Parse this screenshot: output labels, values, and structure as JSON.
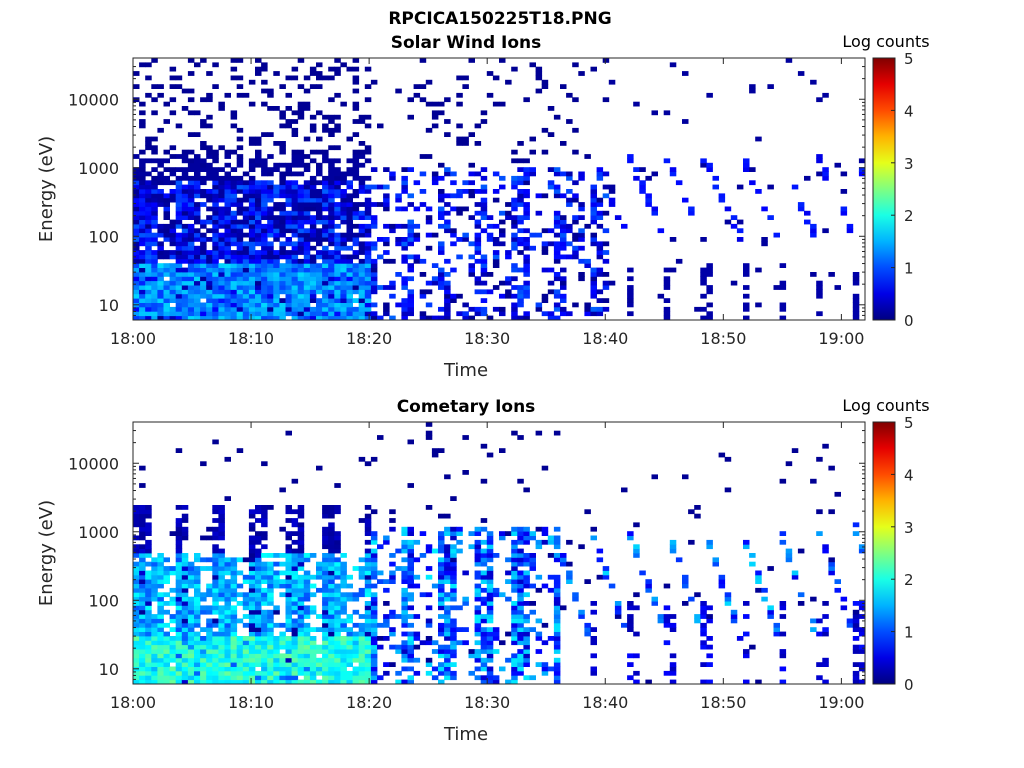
{
  "figure_title": "RPCICA150225T18.PNG",
  "chart_data": [
    {
      "type": "heatmap",
      "title": "Solar Wind Ions",
      "xlabel": "Time",
      "ylabel": "Energy (eV)",
      "x_ticks": [
        "18:00",
        "18:10",
        "18:20",
        "18:30",
        "18:40",
        "18:50",
        "19:00"
      ],
      "x_range": [
        "18:00",
        "19:02"
      ],
      "y_scale": "log",
      "y_ticks": [
        "10",
        "100",
        "1000",
        "10000"
      ],
      "y_range": [
        6,
        40000
      ],
      "colorbar": {
        "label": "Log counts",
        "range": [
          0,
          5
        ],
        "ticks": [
          "0",
          "1",
          "2",
          "3",
          "4",
          "5"
        ],
        "colormap": "jet"
      },
      "regions": [
        {
          "time": [
            "18:00",
            "18:20"
          ],
          "energy_eV": [
            6,
            40
          ],
          "log_counts": 1.2
        },
        {
          "time": [
            "18:00",
            "18:20"
          ],
          "energy_eV": [
            40,
            700
          ],
          "log_counts": 0.6
        },
        {
          "time": [
            "18:00",
            "18:20"
          ],
          "energy_eV": [
            700,
            30000
          ],
          "log_counts": 0.2
        },
        {
          "time": [
            "18:20",
            "18:40"
          ],
          "energy_eV": [
            6,
            1000
          ],
          "log_counts": 0.5
        },
        {
          "time": [
            "18:40",
            "19:02"
          ],
          "energy_eV": [
            6,
            2000
          ],
          "log_counts": 0.2
        }
      ]
    },
    {
      "type": "heatmap",
      "title": "Cometary Ions",
      "xlabel": "Time",
      "ylabel": "Energy (eV)",
      "x_ticks": [
        "18:00",
        "18:10",
        "18:20",
        "18:30",
        "18:40",
        "18:50",
        "19:00"
      ],
      "x_range": [
        "18:00",
        "19:02"
      ],
      "y_scale": "log",
      "y_ticks": [
        "10",
        "100",
        "1000",
        "10000"
      ],
      "y_range": [
        6,
        40000
      ],
      "colorbar": {
        "label": "Log counts",
        "range": [
          0,
          5
        ],
        "ticks": [
          "0",
          "1",
          "2",
          "3",
          "4",
          "5"
        ],
        "colormap": "jet"
      },
      "regions": [
        {
          "time": [
            "18:00",
            "18:20"
          ],
          "energy_eV": [
            6,
            30
          ],
          "log_counts": 2.0
        },
        {
          "time": [
            "18:00",
            "18:20"
          ],
          "energy_eV": [
            30,
            500
          ],
          "log_counts": 1.5
        },
        {
          "time": [
            "18:00",
            "18:20"
          ],
          "energy_eV": [
            500,
            2500
          ],
          "log_counts": 0.3
        },
        {
          "time": [
            "18:20",
            "18:35"
          ],
          "energy_eV": [
            6,
            1200
          ],
          "log_counts": 1.0
        },
        {
          "time": [
            "18:40",
            "19:02"
          ],
          "energy_eV": [
            500,
            1500
          ],
          "log_counts": 1.4
        }
      ]
    }
  ]
}
